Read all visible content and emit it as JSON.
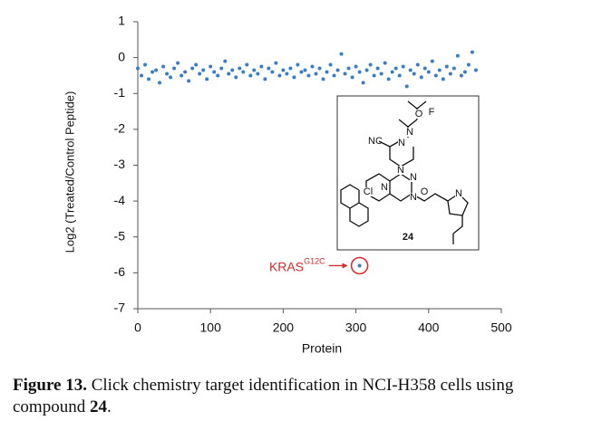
{
  "chart_data": {
    "type": "scatter",
    "x_label": "Protein",
    "y_label": "Log2 (Treated/Control Peptide)",
    "color": "#3b7dc4",
    "x": [
      0,
      5,
      10,
      15,
      20,
      25,
      30,
      35,
      40,
      45,
      50,
      55,
      60,
      65,
      70,
      75,
      80,
      85,
      90,
      95,
      100,
      105,
      110,
      115,
      120,
      125,
      130,
      135,
      140,
      145,
      150,
      155,
      160,
      165,
      170,
      175,
      180,
      185,
      190,
      195,
      200,
      205,
      210,
      215,
      220,
      225,
      230,
      235,
      240,
      245,
      250,
      255,
      260,
      265,
      270,
      275,
      280,
      285,
      290,
      295,
      300,
      305,
      310,
      315,
      320,
      325,
      330,
      335,
      340,
      345,
      350,
      355,
      360,
      365,
      370,
      375,
      380,
      385,
      390,
      395,
      400,
      405,
      410,
      415,
      420,
      425,
      430,
      435,
      440,
      445,
      450,
      455,
      460,
      465
    ],
    "values": [
      -0.3,
      -0.5,
      -0.2,
      -0.6,
      -0.4,
      -0.35,
      -0.7,
      -0.25,
      -0.45,
      -0.55,
      -0.3,
      -0.15,
      -0.5,
      -0.4,
      -0.65,
      -0.3,
      -0.2,
      -0.45,
      -0.35,
      -0.6,
      -0.25,
      -0.4,
      -0.5,
      -0.3,
      -0.1,
      -0.45,
      -0.35,
      -0.55,
      -0.3,
      -0.4,
      -0.2,
      -0.5,
      -0.35,
      -0.45,
      -0.25,
      -0.6,
      -0.3,
      -0.4,
      -0.15,
      -0.5,
      -0.35,
      -0.45,
      -0.3,
      -0.55,
      -0.2,
      -0.4,
      -0.35,
      -0.5,
      -0.25,
      -0.45,
      -0.3,
      -0.6,
      -0.4,
      -0.2,
      -0.5,
      -0.35,
      0.1,
      -0.45,
      -0.3,
      -0.55,
      -0.25,
      -0.4,
      -0.7,
      -0.35,
      -0.2,
      -0.5,
      -0.3,
      -0.45,
      -0.15,
      -0.6,
      -0.4,
      -0.3,
      -0.5,
      -0.25,
      -0.8,
      -0.35,
      -0.45,
      -0.2,
      -0.55,
      -0.3,
      -0.4,
      -0.1,
      -0.5,
      -0.35,
      -0.6,
      -0.25,
      -0.45,
      -0.3,
      0.05,
      -0.5,
      -0.4,
      -0.2,
      0.15,
      -0.35
    ],
    "xlim": [
      0,
      500
    ],
    "ylim": [
      -7,
      1
    ],
    "xticks": [
      0,
      100,
      200,
      300,
      400,
      500
    ],
    "yticks": [
      1,
      0,
      -1,
      -2,
      -3,
      -4,
      -5,
      -6,
      -7
    ],
    "annotation": {
      "text": "KRAS",
      "sup": "G12C",
      "x": 305,
      "y": -5.8,
      "color": "#d42a2a"
    },
    "inset_labels": [
      "O",
      "F",
      "N",
      "NC",
      "N",
      "N",
      "N",
      "N",
      "O",
      "N",
      "N",
      "Cl",
      "24"
    ]
  },
  "caption": {
    "label": "Figure 13.",
    "text": " Click chemistry target identification in NCI-H358 cells using compound ",
    "compound": "24",
    "end": "."
  }
}
